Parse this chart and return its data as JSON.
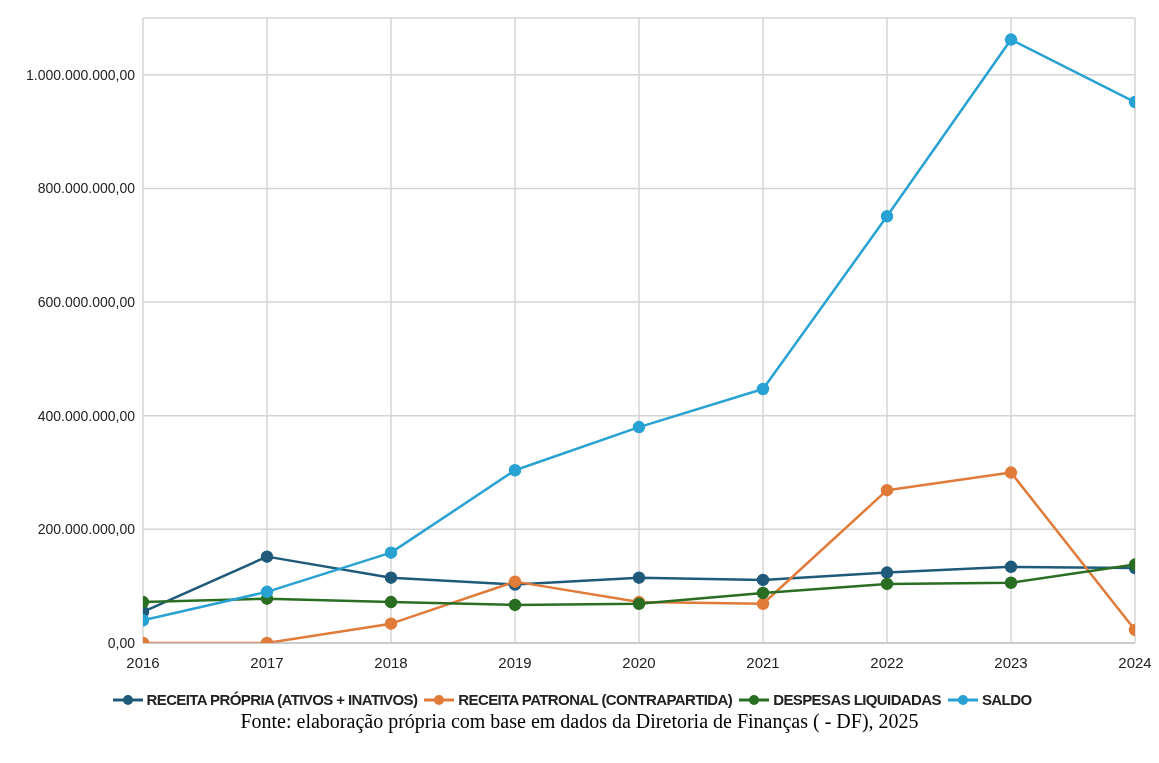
{
  "chart_data": {
    "type": "line",
    "categories": [
      "2016",
      "2017",
      "2018",
      "2019",
      "2020",
      "2021",
      "2022",
      "2023",
      "2024"
    ],
    "series": [
      {
        "name": "RECEITA PRÓPRIA (ATIVOS + INATIVOS)",
        "color": "#1f5a7a",
        "values": [
          55000000,
          152000000,
          115000000,
          103000000,
          115000000,
          111000000,
          124000000,
          134000000,
          132000000
        ]
      },
      {
        "name": "RECEITA PATRONAL (CONTRAPARTIDA)",
        "color": "#e07b39",
        "values": [
          0,
          0,
          34000000,
          108000000,
          72000000,
          69000000,
          269000000,
          300000000,
          23000000
        ]
      },
      {
        "name": "DESPESAS LIQUIDADAS",
        "color": "#2a6e23",
        "values": [
          72000000,
          78000000,
          72000000,
          67000000,
          69000000,
          88000000,
          104000000,
          106000000,
          138000000
        ]
      },
      {
        "name": "SALDO",
        "color": "#27a2d3",
        "values": [
          40000000,
          90000000,
          159000000,
          304000000,
          380000000,
          447000000,
          751000000,
          1062000000,
          952000000
        ]
      }
    ],
    "ylim": [
      0,
      1100000000
    ],
    "yticks": [
      {
        "value": 0,
        "label": "0,00"
      },
      {
        "value": 200000000,
        "label": "200.000.000,00"
      },
      {
        "value": 400000000,
        "label": "400.000.000,00"
      },
      {
        "value": 600000000,
        "label": "600.000.000,00"
      },
      {
        "value": 800000000,
        "label": "800.000.000,00"
      },
      {
        "value": 1000000000,
        "label": "1.000.000.000,00"
      }
    ],
    "grid": true,
    "legend": "bottom",
    "marker": "circle",
    "line_style": "solid",
    "annotations": [
      "Fonte: elaboração própria com base em dados da Diretoria de Finanças ( - DF), 2025"
    ]
  }
}
